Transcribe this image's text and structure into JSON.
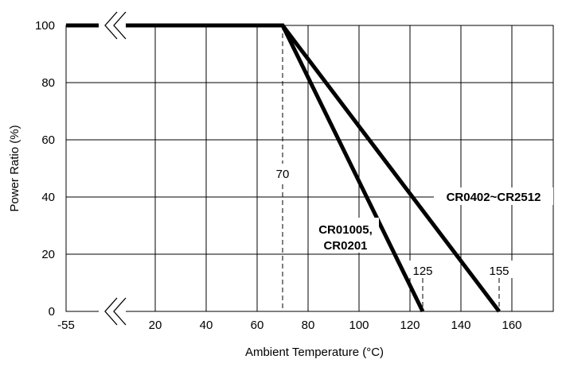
{
  "chart_data": {
    "type": "line",
    "xlabel": "Ambient Temperature (°C)",
    "ylabel": "Power Ratio (%)",
    "x_ticks": [
      "-55",
      "20",
      "40",
      "60",
      "80",
      "100",
      "120",
      "140",
      "160"
    ],
    "y_ticks": [
      "0",
      "20",
      "40",
      "60",
      "80",
      "100"
    ],
    "xlim": [
      -55,
      175
    ],
    "ylim": [
      0,
      100
    ],
    "x_axis_break": true,
    "grid": true,
    "series": [
      {
        "name": "CR01005,\nCR0201",
        "label_lines": [
          "CR01005,",
          "CR0201"
        ],
        "x": [
          -55,
          70,
          125
        ],
        "y": [
          100,
          100,
          0
        ]
      },
      {
        "name": "CR0402~CR2512",
        "x": [
          -55,
          70,
          155
        ],
        "y": [
          100,
          100,
          0
        ]
      }
    ],
    "annotations": [
      {
        "text": "70",
        "x": 70
      },
      {
        "text": "125",
        "x": 125
      },
      {
        "text": "155",
        "x": 155
      }
    ],
    "colors": {
      "line": "#000000",
      "grid": "#000000",
      "background": "#ffffff"
    }
  }
}
